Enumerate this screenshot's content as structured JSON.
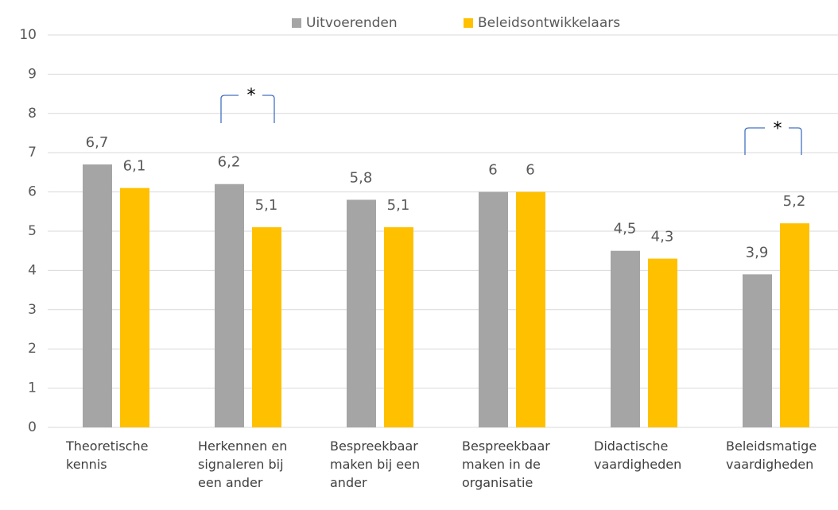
{
  "chart_data": {
    "type": "bar",
    "categories": [
      "Theoretische kennis",
      "Herkennen en signaleren bij een ander",
      "Bespreekbaar maken bij een ander",
      "Bespreekbaar maken in de organisatie",
      "Didactische vaardigheden",
      "Beleidsmatige vaardigheden"
    ],
    "series": [
      {
        "name": "Uitvoerenden",
        "color": "#a5a5a5",
        "values": [
          6.7,
          6.2,
          5.8,
          6,
          4.5,
          3.9
        ],
        "value_labels": [
          "6,7",
          "6,2",
          "5,8",
          "6",
          "4,5",
          "3,9"
        ]
      },
      {
        "name": "Beleidsontwikkelaars",
        "color": "#ffc000",
        "values": [
          6.1,
          5.1,
          5.1,
          6,
          4.3,
          5.2
        ],
        "value_labels": [
          "6,1",
          "5,1",
          "5,1",
          "6",
          "4,3",
          "5,2"
        ]
      }
    ],
    "annotations": [
      "*",
      "*"
    ],
    "ylim": [
      0,
      10
    ],
    "yticks": [
      0,
      1,
      2,
      3,
      4,
      5,
      6,
      7,
      8,
      9,
      10
    ],
    "grid": true,
    "legend": "top"
  }
}
